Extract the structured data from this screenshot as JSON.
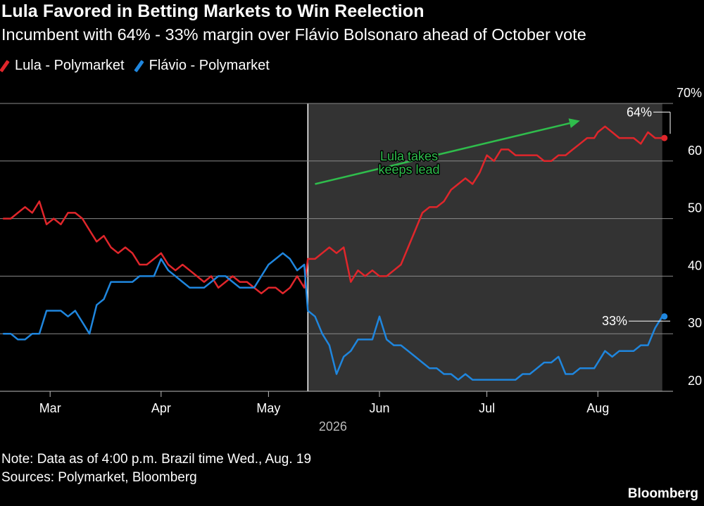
{
  "title": "Lula Favored in Betting Markets to Win Reelection",
  "subtitle": "Incumbent with 64% - 33% margin over Flávio Bolsonaro ahead of October vote",
  "footer": {
    "note": "Note: Data as of 4:00 p.m. Brazil time Wed., Aug. 19",
    "sources": "Sources: Polymarket, Bloomberg",
    "brand": "Bloomberg"
  },
  "colors": {
    "lula": "#e0262b",
    "flavio": "#1f86de",
    "annotation": "#2fbd4c",
    "shade": "#333333",
    "grid": "#8a8a8a",
    "background": "#000000"
  },
  "chart_data": {
    "type": "line",
    "title": "Lula Favored in Betting Markets to Win Reelection",
    "ylabel": "",
    "xlabel": "2026",
    "y_unit": "%",
    "ylim": [
      20,
      70
    ],
    "yticks": [
      70,
      60,
      50,
      40,
      30,
      20
    ],
    "ytick_labels": [
      "70%",
      "60",
      "50",
      "40",
      "30",
      "20"
    ],
    "xlim": [
      "2026-02-15",
      "2026-08-22"
    ],
    "x_ticks": [
      {
        "date": "2026-03-01",
        "label": "Mar"
      },
      {
        "date": "2026-04-01",
        "label": "Apr"
      },
      {
        "date": "2026-05-01",
        "label": "May"
      },
      {
        "date": "2026-06-01",
        "label": "Jun"
      },
      {
        "date": "2026-07-01",
        "label": "Jul"
      },
      {
        "date": "2026-08-01",
        "label": "Aug"
      }
    ],
    "shaded_region": {
      "start": "2026-05-12",
      "end": "2026-08-19"
    },
    "grid": true,
    "legend": "top-left",
    "annotation": {
      "text_lines": [
        "Lula takes",
        "keeps lead"
      ],
      "arrow_from": [
        "2026-05-14",
        56
      ],
      "arrow_to": [
        "2026-07-27",
        67
      ]
    },
    "end_labels": [
      {
        "series": "Lula - Polymarket",
        "label": "64%",
        "date": "2026-08-19",
        "value": 64
      },
      {
        "series": "Flávio - Polymarket",
        "label": "33%",
        "date": "2026-08-19",
        "value": 33
      }
    ],
    "series": [
      {
        "name": "Lula - Polymarket",
        "color": "#e0262b",
        "points": [
          [
            "2026-02-16",
            50
          ],
          [
            "2026-02-18",
            50
          ],
          [
            "2026-02-20",
            51
          ],
          [
            "2026-02-22",
            52
          ],
          [
            "2026-02-24",
            51
          ],
          [
            "2026-02-26",
            53
          ],
          [
            "2026-02-28",
            49
          ],
          [
            "2026-03-02",
            50
          ],
          [
            "2026-03-04",
            49
          ],
          [
            "2026-03-06",
            51
          ],
          [
            "2026-03-08",
            51
          ],
          [
            "2026-03-10",
            50
          ],
          [
            "2026-03-12",
            48
          ],
          [
            "2026-03-14",
            46
          ],
          [
            "2026-03-16",
            47
          ],
          [
            "2026-03-18",
            45
          ],
          [
            "2026-03-20",
            44
          ],
          [
            "2026-03-22",
            45
          ],
          [
            "2026-03-24",
            44
          ],
          [
            "2026-03-26",
            42
          ],
          [
            "2026-03-28",
            42
          ],
          [
            "2026-03-30",
            43
          ],
          [
            "2026-04-01",
            44
          ],
          [
            "2026-04-03",
            42
          ],
          [
            "2026-04-05",
            41
          ],
          [
            "2026-04-07",
            42
          ],
          [
            "2026-04-09",
            41
          ],
          [
            "2026-04-11",
            40
          ],
          [
            "2026-04-13",
            39
          ],
          [
            "2026-04-15",
            40
          ],
          [
            "2026-04-17",
            38
          ],
          [
            "2026-04-19",
            39
          ],
          [
            "2026-04-21",
            40
          ],
          [
            "2026-04-23",
            39
          ],
          [
            "2026-04-25",
            39
          ],
          [
            "2026-04-27",
            38
          ],
          [
            "2026-04-29",
            37
          ],
          [
            "2026-05-01",
            38
          ],
          [
            "2026-05-03",
            38
          ],
          [
            "2026-05-05",
            37
          ],
          [
            "2026-05-07",
            38
          ],
          [
            "2026-05-09",
            40
          ],
          [
            "2026-05-11",
            38
          ],
          [
            "2026-05-12",
            43
          ],
          [
            "2026-05-14",
            43
          ],
          [
            "2026-05-16",
            44
          ],
          [
            "2026-05-18",
            45
          ],
          [
            "2026-05-20",
            44
          ],
          [
            "2026-05-22",
            45
          ],
          [
            "2026-05-24",
            39
          ],
          [
            "2026-05-26",
            41
          ],
          [
            "2026-05-28",
            40
          ],
          [
            "2026-05-30",
            41
          ],
          [
            "2026-06-01",
            40
          ],
          [
            "2026-06-03",
            40
          ],
          [
            "2026-06-05",
            41
          ],
          [
            "2026-06-07",
            42
          ],
          [
            "2026-06-09",
            45
          ],
          [
            "2026-06-11",
            48
          ],
          [
            "2026-06-13",
            51
          ],
          [
            "2026-06-15",
            52
          ],
          [
            "2026-06-17",
            52
          ],
          [
            "2026-06-19",
            53
          ],
          [
            "2026-06-21",
            55
          ],
          [
            "2026-06-23",
            56
          ],
          [
            "2026-06-25",
            57
          ],
          [
            "2026-06-27",
            56
          ],
          [
            "2026-06-29",
            58
          ],
          [
            "2026-07-01",
            61
          ],
          [
            "2026-07-03",
            60
          ],
          [
            "2026-07-05",
            62
          ],
          [
            "2026-07-07",
            62
          ],
          [
            "2026-07-09",
            61
          ],
          [
            "2026-07-11",
            61
          ],
          [
            "2026-07-13",
            61
          ],
          [
            "2026-07-15",
            61
          ],
          [
            "2026-07-17",
            60
          ],
          [
            "2026-07-19",
            60
          ],
          [
            "2026-07-21",
            61
          ],
          [
            "2026-07-23",
            61
          ],
          [
            "2026-07-25",
            62
          ],
          [
            "2026-07-27",
            63
          ],
          [
            "2026-07-29",
            64
          ],
          [
            "2026-07-31",
            64
          ],
          [
            "2026-08-01",
            65
          ],
          [
            "2026-08-03",
            66
          ],
          [
            "2026-08-05",
            65
          ],
          [
            "2026-08-07",
            64
          ],
          [
            "2026-08-09",
            64
          ],
          [
            "2026-08-11",
            64
          ],
          [
            "2026-08-13",
            63
          ],
          [
            "2026-08-15",
            65
          ],
          [
            "2026-08-17",
            64
          ],
          [
            "2026-08-19",
            64
          ]
        ]
      },
      {
        "name": "Flávio - Polymarket",
        "color": "#1f86de",
        "points": [
          [
            "2026-02-16",
            30
          ],
          [
            "2026-02-18",
            30
          ],
          [
            "2026-02-20",
            29
          ],
          [
            "2026-02-22",
            29
          ],
          [
            "2026-02-24",
            30
          ],
          [
            "2026-02-26",
            30
          ],
          [
            "2026-02-28",
            34
          ],
          [
            "2026-03-02",
            34
          ],
          [
            "2026-03-04",
            34
          ],
          [
            "2026-03-06",
            33
          ],
          [
            "2026-03-08",
            34
          ],
          [
            "2026-03-10",
            32
          ],
          [
            "2026-03-12",
            30
          ],
          [
            "2026-03-14",
            35
          ],
          [
            "2026-03-16",
            36
          ],
          [
            "2026-03-18",
            39
          ],
          [
            "2026-03-20",
            39
          ],
          [
            "2026-03-22",
            39
          ],
          [
            "2026-03-24",
            39
          ],
          [
            "2026-03-26",
            40
          ],
          [
            "2026-03-28",
            40
          ],
          [
            "2026-03-30",
            40
          ],
          [
            "2026-04-01",
            43
          ],
          [
            "2026-04-03",
            41
          ],
          [
            "2026-04-05",
            40
          ],
          [
            "2026-04-07",
            39
          ],
          [
            "2026-04-09",
            38
          ],
          [
            "2026-04-11",
            38
          ],
          [
            "2026-04-13",
            38
          ],
          [
            "2026-04-15",
            39
          ],
          [
            "2026-04-17",
            40
          ],
          [
            "2026-04-19",
            40
          ],
          [
            "2026-04-21",
            39
          ],
          [
            "2026-04-23",
            38
          ],
          [
            "2026-04-25",
            38
          ],
          [
            "2026-04-27",
            38
          ],
          [
            "2026-04-29",
            40
          ],
          [
            "2026-05-01",
            42
          ],
          [
            "2026-05-03",
            43
          ],
          [
            "2026-05-05",
            44
          ],
          [
            "2026-05-07",
            43
          ],
          [
            "2026-05-09",
            41
          ],
          [
            "2026-05-11",
            42
          ],
          [
            "2026-05-12",
            34
          ],
          [
            "2026-05-14",
            33
          ],
          [
            "2026-05-16",
            30
          ],
          [
            "2026-05-18",
            28
          ],
          [
            "2026-05-20",
            23
          ],
          [
            "2026-05-22",
            26
          ],
          [
            "2026-05-24",
            27
          ],
          [
            "2026-05-26",
            29
          ],
          [
            "2026-05-28",
            29
          ],
          [
            "2026-05-30",
            29
          ],
          [
            "2026-06-01",
            33
          ],
          [
            "2026-06-03",
            29
          ],
          [
            "2026-06-05",
            28
          ],
          [
            "2026-06-07",
            28
          ],
          [
            "2026-06-09",
            27
          ],
          [
            "2026-06-11",
            26
          ],
          [
            "2026-06-13",
            25
          ],
          [
            "2026-06-15",
            24
          ],
          [
            "2026-06-17",
            24
          ],
          [
            "2026-06-19",
            23
          ],
          [
            "2026-06-21",
            23
          ],
          [
            "2026-06-23",
            22
          ],
          [
            "2026-06-25",
            23
          ],
          [
            "2026-06-27",
            22
          ],
          [
            "2026-06-29",
            22
          ],
          [
            "2026-07-01",
            22
          ],
          [
            "2026-07-03",
            22
          ],
          [
            "2026-07-05",
            22
          ],
          [
            "2026-07-07",
            22
          ],
          [
            "2026-07-09",
            22
          ],
          [
            "2026-07-11",
            23
          ],
          [
            "2026-07-13",
            23
          ],
          [
            "2026-07-15",
            24
          ],
          [
            "2026-07-17",
            25
          ],
          [
            "2026-07-19",
            25
          ],
          [
            "2026-07-21",
            26
          ],
          [
            "2026-07-23",
            23
          ],
          [
            "2026-07-25",
            23
          ],
          [
            "2026-07-27",
            24
          ],
          [
            "2026-07-29",
            24
          ],
          [
            "2026-07-31",
            24
          ],
          [
            "2026-08-01",
            25
          ],
          [
            "2026-08-03",
            27
          ],
          [
            "2026-08-05",
            26
          ],
          [
            "2026-08-07",
            27
          ],
          [
            "2026-08-09",
            27
          ],
          [
            "2026-08-11",
            27
          ],
          [
            "2026-08-13",
            28
          ],
          [
            "2026-08-15",
            28
          ],
          [
            "2026-08-17",
            31
          ],
          [
            "2026-08-19",
            33
          ]
        ]
      }
    ]
  }
}
